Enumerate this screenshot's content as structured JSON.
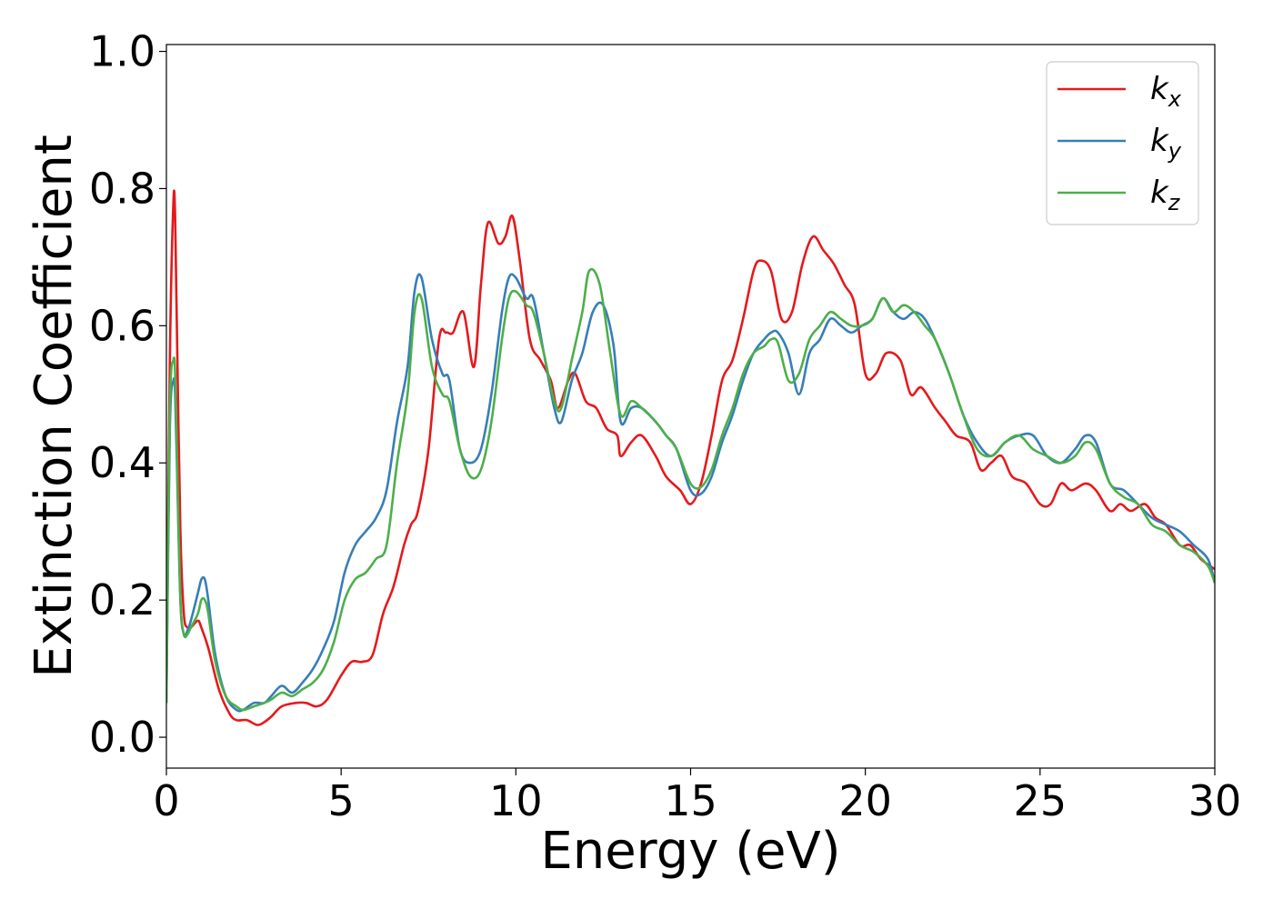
{
  "chart_data": {
    "type": "line",
    "title": "",
    "xlabel": "Energy (eV)",
    "ylabel": "Extinction Coefficient",
    "xlim": [
      0,
      30
    ],
    "ylim": [
      -0.045,
      1.01
    ],
    "xticks": [
      0,
      5,
      10,
      15,
      20,
      25,
      30
    ],
    "xtick_labels": [
      "0",
      "5",
      "10",
      "15",
      "20",
      "25",
      "30"
    ],
    "yticks": [
      0.0,
      0.2,
      0.4,
      0.6,
      0.8,
      1.0
    ],
    "ytick_labels": [
      "0.0",
      "0.2",
      "0.4",
      "0.6",
      "0.8",
      "1.0"
    ],
    "grid": false,
    "legend_position": "top-right",
    "series": [
      {
        "name": "kx",
        "label_base": "k",
        "label_sub": "x",
        "color": "#e41a1c",
        "x": [
          0,
          0.1,
          0.2,
          0.25,
          0.3,
          0.4,
          0.5,
          0.6,
          0.7,
          0.9,
          1.0,
          1.2,
          1.5,
          1.8,
          2.0,
          2.3,
          2.6,
          2.8,
          3.0,
          3.3,
          3.7,
          4.0,
          4.3,
          4.6,
          5.0,
          5.3,
          5.6,
          5.9,
          6.2,
          6.5,
          6.8,
          7.0,
          7.2,
          7.5,
          7.8,
          8.0,
          8.2,
          8.5,
          8.8,
          9.0,
          9.2,
          9.5,
          9.7,
          9.9,
          10.1,
          10.4,
          10.7,
          11.0,
          11.2,
          11.5,
          11.7,
          12.0,
          12.3,
          12.6,
          12.9,
          13.0,
          13.3,
          13.6,
          14.0,
          14.3,
          14.7,
          15.0,
          15.3,
          15.6,
          15.9,
          16.2,
          16.5,
          16.8,
          17.0,
          17.3,
          17.6,
          17.9,
          18.2,
          18.5,
          18.8,
          19.1,
          19.4,
          19.7,
          20.0,
          20.3,
          20.6,
          21.0,
          21.3,
          21.6,
          22.0,
          22.3,
          22.6,
          23.0,
          23.3,
          23.6,
          23.9,
          24.2,
          24.6,
          25.0,
          25.3,
          25.6,
          25.9,
          26.3,
          26.6,
          27.0,
          27.3,
          27.6,
          28.0,
          28.3,
          28.6,
          29.0,
          29.3,
          29.6,
          30.0
        ],
        "y": [
          0.06,
          0.55,
          0.78,
          0.76,
          0.6,
          0.3,
          0.18,
          0.16,
          0.16,
          0.17,
          0.16,
          0.13,
          0.07,
          0.035,
          0.025,
          0.025,
          0.018,
          0.022,
          0.03,
          0.045,
          0.05,
          0.05,
          0.045,
          0.055,
          0.09,
          0.11,
          0.11,
          0.12,
          0.18,
          0.22,
          0.28,
          0.31,
          0.33,
          0.42,
          0.58,
          0.59,
          0.59,
          0.62,
          0.54,
          0.66,
          0.75,
          0.72,
          0.73,
          0.76,
          0.7,
          0.58,
          0.55,
          0.52,
          0.48,
          0.52,
          0.53,
          0.49,
          0.48,
          0.45,
          0.44,
          0.41,
          0.43,
          0.44,
          0.41,
          0.38,
          0.36,
          0.34,
          0.37,
          0.44,
          0.52,
          0.55,
          0.61,
          0.68,
          0.695,
          0.68,
          0.61,
          0.62,
          0.69,
          0.73,
          0.71,
          0.69,
          0.66,
          0.63,
          0.53,
          0.53,
          0.56,
          0.55,
          0.5,
          0.51,
          0.48,
          0.46,
          0.44,
          0.43,
          0.39,
          0.4,
          0.41,
          0.38,
          0.37,
          0.34,
          0.34,
          0.37,
          0.36,
          0.37,
          0.36,
          0.33,
          0.34,
          0.33,
          0.34,
          0.32,
          0.31,
          0.28,
          0.28,
          0.26,
          0.245
        ]
      },
      {
        "name": "ky",
        "label_base": "k",
        "label_sub": "y",
        "color": "#377eb8",
        "x": [
          0,
          0.1,
          0.2,
          0.25,
          0.3,
          0.4,
          0.5,
          0.6,
          0.7,
          0.9,
          1.0,
          1.1,
          1.2,
          1.4,
          1.7,
          2.0,
          2.2,
          2.5,
          2.8,
          3.0,
          3.3,
          3.6,
          3.9,
          4.2,
          4.5,
          4.8,
          5.1,
          5.4,
          5.7,
          6.0,
          6.3,
          6.6,
          6.9,
          7.1,
          7.3,
          7.6,
          7.9,
          8.1,
          8.4,
          8.7,
          9.0,
          9.3,
          9.6,
          9.8,
          10.0,
          10.3,
          10.5,
          10.8,
          11.1,
          11.3,
          11.6,
          11.9,
          12.2,
          12.5,
          12.8,
          13.0,
          13.3,
          13.6,
          14.0,
          14.3,
          14.6,
          15.0,
          15.3,
          15.6,
          15.9,
          16.2,
          16.5,
          16.8,
          17.1,
          17.3,
          17.5,
          17.8,
          18.1,
          18.4,
          18.7,
          19.0,
          19.3,
          19.6,
          19.9,
          20.2,
          20.5,
          20.8,
          21.1,
          21.4,
          21.7,
          22.0,
          22.4,
          22.8,
          23.2,
          23.6,
          24.0,
          24.4,
          24.8,
          25.2,
          25.6,
          26.0,
          26.3,
          26.6,
          27.0,
          27.4,
          27.8,
          28.2,
          28.6,
          29.0,
          29.4,
          29.8,
          30.0
        ],
        "y": [
          0.05,
          0.45,
          0.52,
          0.5,
          0.4,
          0.2,
          0.15,
          0.155,
          0.17,
          0.21,
          0.23,
          0.23,
          0.2,
          0.12,
          0.06,
          0.04,
          0.04,
          0.05,
          0.05,
          0.06,
          0.075,
          0.065,
          0.08,
          0.1,
          0.13,
          0.17,
          0.24,
          0.28,
          0.3,
          0.32,
          0.36,
          0.46,
          0.54,
          0.65,
          0.67,
          0.58,
          0.53,
          0.52,
          0.42,
          0.4,
          0.42,
          0.5,
          0.62,
          0.67,
          0.67,
          0.64,
          0.64,
          0.56,
          0.48,
          0.46,
          0.52,
          0.56,
          0.62,
          0.63,
          0.57,
          0.46,
          0.48,
          0.48,
          0.46,
          0.44,
          0.42,
          0.36,
          0.355,
          0.38,
          0.43,
          0.47,
          0.52,
          0.56,
          0.58,
          0.59,
          0.59,
          0.56,
          0.5,
          0.56,
          0.58,
          0.61,
          0.6,
          0.59,
          0.6,
          0.61,
          0.64,
          0.62,
          0.61,
          0.62,
          0.61,
          0.58,
          0.53,
          0.47,
          0.43,
          0.41,
          0.43,
          0.44,
          0.44,
          0.41,
          0.4,
          0.42,
          0.44,
          0.43,
          0.37,
          0.36,
          0.34,
          0.32,
          0.31,
          0.3,
          0.28,
          0.26,
          0.225
        ]
      },
      {
        "name": "kz",
        "label_base": "k",
        "label_sub": "z",
        "color": "#4daf4a",
        "x": [
          0,
          0.1,
          0.2,
          0.25,
          0.3,
          0.4,
          0.5,
          0.6,
          0.7,
          0.9,
          1.0,
          1.1,
          1.2,
          1.4,
          1.7,
          2.0,
          2.2,
          2.5,
          2.8,
          3.0,
          3.3,
          3.6,
          3.9,
          4.2,
          4.5,
          4.8,
          5.1,
          5.4,
          5.7,
          6.0,
          6.3,
          6.6,
          6.9,
          7.1,
          7.3,
          7.6,
          7.9,
          8.1,
          8.4,
          8.7,
          9.0,
          9.3,
          9.6,
          9.8,
          10.0,
          10.3,
          10.5,
          10.8,
          11.1,
          11.3,
          11.6,
          11.9,
          12.1,
          12.4,
          12.7,
          13.0,
          13.3,
          13.6,
          14.0,
          14.3,
          14.6,
          15.0,
          15.3,
          15.6,
          15.9,
          16.2,
          16.5,
          16.8,
          17.1,
          17.3,
          17.5,
          17.8,
          18.1,
          18.4,
          18.7,
          19.0,
          19.3,
          19.6,
          19.9,
          20.2,
          20.5,
          20.8,
          21.1,
          21.4,
          21.7,
          22.0,
          22.4,
          22.8,
          23.2,
          23.6,
          24.0,
          24.4,
          24.8,
          25.2,
          25.6,
          26.0,
          26.3,
          26.6,
          27.0,
          27.4,
          27.8,
          28.2,
          28.6,
          29.0,
          29.4,
          29.8,
          30.0
        ],
        "y": [
          0.05,
          0.48,
          0.55,
          0.53,
          0.42,
          0.2,
          0.15,
          0.15,
          0.16,
          0.18,
          0.2,
          0.2,
          0.18,
          0.11,
          0.06,
          0.045,
          0.04,
          0.045,
          0.05,
          0.055,
          0.065,
          0.06,
          0.07,
          0.08,
          0.1,
          0.14,
          0.2,
          0.23,
          0.24,
          0.26,
          0.28,
          0.4,
          0.5,
          0.62,
          0.64,
          0.54,
          0.5,
          0.49,
          0.42,
          0.38,
          0.39,
          0.46,
          0.58,
          0.64,
          0.65,
          0.63,
          0.62,
          0.56,
          0.49,
          0.48,
          0.55,
          0.62,
          0.68,
          0.66,
          0.56,
          0.47,
          0.49,
          0.48,
          0.46,
          0.44,
          0.42,
          0.37,
          0.365,
          0.39,
          0.44,
          0.48,
          0.53,
          0.56,
          0.57,
          0.58,
          0.575,
          0.52,
          0.53,
          0.58,
          0.6,
          0.62,
          0.61,
          0.6,
          0.6,
          0.61,
          0.64,
          0.62,
          0.63,
          0.62,
          0.6,
          0.58,
          0.53,
          0.47,
          0.42,
          0.41,
          0.43,
          0.44,
          0.42,
          0.41,
          0.4,
          0.41,
          0.43,
          0.42,
          0.37,
          0.35,
          0.34,
          0.31,
          0.3,
          0.28,
          0.27,
          0.25,
          0.225
        ]
      }
    ]
  }
}
